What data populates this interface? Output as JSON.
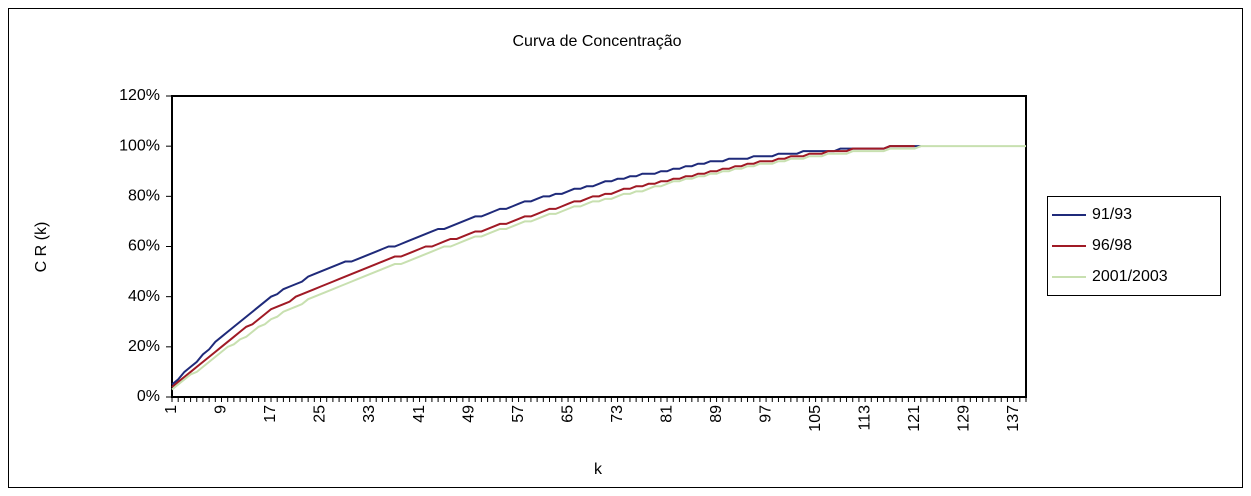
{
  "chart_data": {
    "type": "line",
    "title": "Curva de Concentração",
    "y_label": "C R (k)",
    "x_label": "k",
    "categories": [
      "1",
      null,
      null,
      null,
      null,
      null,
      null,
      null,
      "9",
      null,
      null,
      null,
      null,
      null,
      null,
      null,
      "17",
      null,
      null,
      null,
      null,
      null,
      null,
      null,
      "25",
      null,
      null,
      null,
      null,
      null,
      null,
      null,
      "33",
      null,
      null,
      null,
      null,
      null,
      null,
      null,
      "41",
      null,
      null,
      null,
      null,
      null,
      null,
      null,
      "49",
      null,
      null,
      null,
      null,
      null,
      null,
      null,
      "57",
      null,
      null,
      null,
      null,
      null,
      null,
      null,
      "65",
      null,
      null,
      null,
      null,
      null,
      null,
      null,
      "73",
      null,
      null,
      null,
      null,
      null,
      null,
      null,
      "81",
      null,
      null,
      null,
      null,
      null,
      null,
      null,
      "89",
      null,
      null,
      null,
      null,
      null,
      null,
      null,
      "97",
      null,
      null,
      null,
      null,
      null,
      null,
      null,
      "105",
      null,
      null,
      null,
      null,
      null,
      null,
      null,
      "113",
      null,
      null,
      null,
      null,
      null,
      null,
      null,
      "121",
      null,
      null,
      null,
      null,
      null,
      null,
      null,
      "129",
      null,
      null,
      null,
      null,
      null,
      null,
      null,
      "137",
      null,
      null
    ],
    "series": [
      {
        "name": "91/93",
        "color": "#1f2a7a",
        "values": [
          5,
          7,
          10,
          12,
          14,
          17,
          19,
          22,
          24,
          26,
          28,
          30,
          32,
          34,
          36,
          38,
          40,
          41,
          43,
          44,
          45,
          46,
          48,
          49,
          50,
          51,
          52,
          53,
          54,
          54,
          55,
          56,
          57,
          58,
          59,
          60,
          60,
          61,
          62,
          63,
          64,
          65,
          66,
          67,
          67,
          68,
          69,
          70,
          71,
          72,
          72,
          73,
          74,
          75,
          75,
          76,
          77,
          78,
          78,
          79,
          80,
          80,
          81,
          81,
          82,
          83,
          83,
          84,
          84,
          85,
          86,
          86,
          87,
          87,
          88,
          88,
          89,
          89,
          89,
          90,
          90,
          91,
          91,
          92,
          92,
          93,
          93,
          94,
          94,
          94,
          95,
          95,
          95,
          95,
          96,
          96,
          96,
          96,
          97,
          97,
          97,
          97,
          98,
          98,
          98,
          98,
          98,
          98,
          99,
          99,
          99,
          99,
          99,
          99,
          99,
          99,
          100,
          100,
          100,
          100,
          100,
          100,
          null,
          null,
          null,
          null,
          null,
          null,
          null,
          null,
          null,
          null,
          null,
          null,
          null,
          null,
          null,
          null,
          null
        ]
      },
      {
        "name": "96/98",
        "color": "#a01a25",
        "values": [
          4,
          6,
          8,
          10,
          12,
          14,
          16,
          18,
          20,
          22,
          24,
          26,
          28,
          29,
          31,
          33,
          35,
          36,
          37,
          38,
          40,
          41,
          42,
          43,
          44,
          45,
          46,
          47,
          48,
          49,
          50,
          51,
          52,
          53,
          54,
          55,
          56,
          56,
          57,
          58,
          59,
          60,
          60,
          61,
          62,
          63,
          63,
          64,
          65,
          66,
          66,
          67,
          68,
          69,
          69,
          70,
          71,
          72,
          72,
          73,
          74,
          75,
          75,
          76,
          77,
          78,
          78,
          79,
          80,
          80,
          81,
          81,
          82,
          83,
          83,
          84,
          84,
          85,
          85,
          86,
          86,
          87,
          87,
          88,
          88,
          89,
          89,
          90,
          90,
          91,
          91,
          92,
          92,
          93,
          93,
          94,
          94,
          94,
          95,
          95,
          96,
          96,
          96,
          97,
          97,
          97,
          98,
          98,
          98,
          98,
          99,
          99,
          99,
          99,
          99,
          99,
          100,
          100,
          100,
          100,
          100,
          null,
          null,
          null,
          null,
          null,
          null,
          null,
          null,
          null,
          null,
          null,
          null,
          null,
          null,
          null,
          null,
          null,
          null
        ]
      },
      {
        "name": "2001/2003",
        "color": "#c8e0b0",
        "values": [
          3,
          5,
          7,
          9,
          10,
          12,
          14,
          16,
          18,
          20,
          21,
          23,
          24,
          26,
          28,
          29,
          31,
          32,
          34,
          35,
          36,
          37,
          39,
          40,
          41,
          42,
          43,
          44,
          45,
          46,
          47,
          48,
          49,
          50,
          51,
          52,
          53,
          53,
          54,
          55,
          56,
          57,
          58,
          59,
          60,
          60,
          61,
          62,
          63,
          64,
          64,
          65,
          66,
          67,
          67,
          68,
          69,
          70,
          70,
          71,
          72,
          73,
          73,
          74,
          75,
          76,
          76,
          77,
          78,
          78,
          79,
          79,
          80,
          81,
          81,
          82,
          82,
          83,
          84,
          84,
          85,
          86,
          86,
          87,
          87,
          88,
          88,
          89,
          89,
          90,
          90,
          91,
          91,
          92,
          92,
          93,
          93,
          93,
          94,
          94,
          95,
          95,
          95,
          96,
          96,
          96,
          97,
          97,
          97,
          97,
          98,
          98,
          98,
          98,
          98,
          98,
          99,
          99,
          99,
          99,
          99,
          100,
          100,
          100,
          100,
          100,
          100,
          100,
          100,
          100,
          100,
          100,
          100,
          100,
          100,
          100,
          100,
          100,
          100
        ]
      }
    ],
    "ylim": [
      0,
      120
    ],
    "yticks": [
      {
        "value": 0,
        "label": "0%"
      },
      {
        "value": 20,
        "label": "20%"
      },
      {
        "value": 40,
        "label": "40%"
      },
      {
        "value": 60,
        "label": "60%"
      },
      {
        "value": 80,
        "label": "80%"
      },
      {
        "value": 100,
        "label": "100%"
      },
      {
        "value": 120,
        "label": "120%"
      }
    ],
    "grid": false,
    "legend": "right"
  }
}
